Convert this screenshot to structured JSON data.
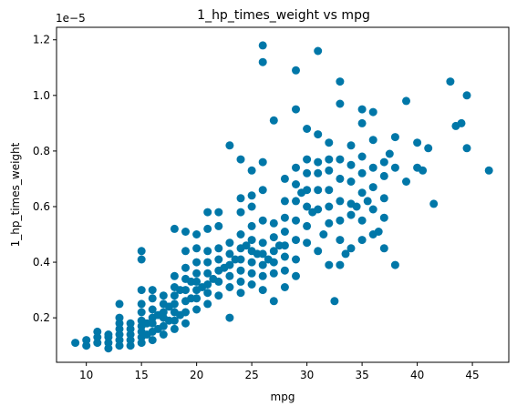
{
  "chart_data": {
    "type": "scatter",
    "title": "1_hp_times_weight vs mpg",
    "xlabel": "mpg",
    "ylabel": "1_hp_times_weight",
    "y_offset_text": "1e−5",
    "xlim": [
      7.3,
      48.3
    ],
    "ylim": [
      0.04,
      1.245
    ],
    "y_scale_note": "values in units of 1e-5",
    "xticks": [
      10,
      15,
      20,
      25,
      30,
      35,
      40,
      45
    ],
    "xtick_labels": [
      "10",
      "15",
      "20",
      "25",
      "30",
      "35",
      "40",
      "45"
    ],
    "yticks": [
      0.2,
      0.4,
      0.6,
      0.8,
      1.0,
      1.2
    ],
    "ytick_labels": [
      "0.2",
      "0.4",
      "0.6",
      "0.8",
      "1.0",
      "1.2"
    ],
    "grid": false,
    "marker_color": "#0077a8",
    "points": [
      [
        9.0,
        0.11
      ],
      [
        10.0,
        0.1
      ],
      [
        10.0,
        0.12
      ],
      [
        11.0,
        0.11
      ],
      [
        11.0,
        0.13
      ],
      [
        11.0,
        0.15
      ],
      [
        12.0,
        0.09
      ],
      [
        12.0,
        0.11
      ],
      [
        12.0,
        0.13
      ],
      [
        12.0,
        0.14
      ],
      [
        13.0,
        0.1
      ],
      [
        13.0,
        0.12
      ],
      [
        13.0,
        0.14
      ],
      [
        13.0,
        0.16
      ],
      [
        13.0,
        0.18
      ],
      [
        13.0,
        0.2
      ],
      [
        13.0,
        0.25
      ],
      [
        14.0,
        0.1
      ],
      [
        14.0,
        0.12
      ],
      [
        14.0,
        0.14
      ],
      [
        14.0,
        0.16
      ],
      [
        14.0,
        0.18
      ],
      [
        15.0,
        0.11
      ],
      [
        15.0,
        0.13
      ],
      [
        15.0,
        0.15
      ],
      [
        15.0,
        0.17
      ],
      [
        15.0,
        0.19
      ],
      [
        15.0,
        0.22
      ],
      [
        15.0,
        0.25
      ],
      [
        15.0,
        0.3
      ],
      [
        15.0,
        0.41
      ],
      [
        15.0,
        0.44
      ],
      [
        15.5,
        0.14
      ],
      [
        15.5,
        0.18
      ],
      [
        16.0,
        0.12
      ],
      [
        16.0,
        0.15
      ],
      [
        16.0,
        0.18
      ],
      [
        16.0,
        0.2
      ],
      [
        16.0,
        0.23
      ],
      [
        16.0,
        0.27
      ],
      [
        16.0,
        0.3
      ],
      [
        16.5,
        0.16
      ],
      [
        16.5,
        0.21
      ],
      [
        17.0,
        0.14
      ],
      [
        17.0,
        0.17
      ],
      [
        17.0,
        0.2
      ],
      [
        17.0,
        0.22
      ],
      [
        17.0,
        0.25
      ],
      [
        17.0,
        0.28
      ],
      [
        17.5,
        0.19
      ],
      [
        17.5,
        0.24
      ],
      [
        18.0,
        0.16
      ],
      [
        18.0,
        0.19
      ],
      [
        18.0,
        0.22
      ],
      [
        18.0,
        0.25
      ],
      [
        18.0,
        0.28
      ],
      [
        18.0,
        0.31
      ],
      [
        18.0,
        0.35
      ],
      [
        18.0,
        0.52
      ],
      [
        18.5,
        0.21
      ],
      [
        18.5,
        0.3
      ],
      [
        19.0,
        0.18
      ],
      [
        19.0,
        0.22
      ],
      [
        19.0,
        0.26
      ],
      [
        19.0,
        0.3
      ],
      [
        19.0,
        0.34
      ],
      [
        19.0,
        0.38
      ],
      [
        19.0,
        0.44
      ],
      [
        19.0,
        0.51
      ],
      [
        19.5,
        0.27
      ],
      [
        19.5,
        0.33
      ],
      [
        20.0,
        0.23
      ],
      [
        20.0,
        0.27
      ],
      [
        20.0,
        0.3
      ],
      [
        20.0,
        0.33
      ],
      [
        20.0,
        0.36
      ],
      [
        20.0,
        0.4
      ],
      [
        20.0,
        0.45
      ],
      [
        20.0,
        0.5
      ],
      [
        20.5,
        0.31
      ],
      [
        21.0,
        0.25
      ],
      [
        21.0,
        0.29
      ],
      [
        21.0,
        0.32
      ],
      [
        21.0,
        0.36
      ],
      [
        21.0,
        0.4
      ],
      [
        21.0,
        0.44
      ],
      [
        21.0,
        0.52
      ],
      [
        21.0,
        0.58
      ],
      [
        21.5,
        0.34
      ],
      [
        22.0,
        0.28
      ],
      [
        22.0,
        0.33
      ],
      [
        22.0,
        0.37
      ],
      [
        22.0,
        0.41
      ],
      [
        22.0,
        0.45
      ],
      [
        22.0,
        0.53
      ],
      [
        22.0,
        0.58
      ],
      [
        22.5,
        0.38
      ],
      [
        23.0,
        0.2
      ],
      [
        23.0,
        0.31
      ],
      [
        23.0,
        0.35
      ],
      [
        23.0,
        0.39
      ],
      [
        23.0,
        0.43
      ],
      [
        23.0,
        0.47
      ],
      [
        23.0,
        0.82
      ],
      [
        23.5,
        0.41
      ],
      [
        24.0,
        0.29
      ],
      [
        24.0,
        0.33
      ],
      [
        24.0,
        0.37
      ],
      [
        24.0,
        0.41
      ],
      [
        24.0,
        0.45
      ],
      [
        24.0,
        0.5
      ],
      [
        24.0,
        0.58
      ],
      [
        24.0,
        0.63
      ],
      [
        24.0,
        0.77
      ],
      [
        24.5,
        0.46
      ],
      [
        25.0,
        0.32
      ],
      [
        25.0,
        0.36
      ],
      [
        25.0,
        0.4
      ],
      [
        25.0,
        0.44
      ],
      [
        25.0,
        0.48
      ],
      [
        25.0,
        0.53
      ],
      [
        25.0,
        0.6
      ],
      [
        25.0,
        0.64
      ],
      [
        25.0,
        0.73
      ],
      [
        25.5,
        0.43
      ],
      [
        26.0,
        0.3
      ],
      [
        26.0,
        0.35
      ],
      [
        26.0,
        0.39
      ],
      [
        26.0,
        0.43
      ],
      [
        26.0,
        0.47
      ],
      [
        26.0,
        0.55
      ],
      [
        26.0,
        0.66
      ],
      [
        26.0,
        0.76
      ],
      [
        26.0,
        1.12
      ],
      [
        26.0,
        1.18
      ],
      [
        26.5,
        0.41
      ],
      [
        27.0,
        0.26
      ],
      [
        27.0,
        0.36
      ],
      [
        27.0,
        0.4
      ],
      [
        27.0,
        0.44
      ],
      [
        27.0,
        0.49
      ],
      [
        27.0,
        0.54
      ],
      [
        27.0,
        0.91
      ],
      [
        27.5,
        0.46
      ],
      [
        28.0,
        0.31
      ],
      [
        28.0,
        0.37
      ],
      [
        28.0,
        0.42
      ],
      [
        28.0,
        0.46
      ],
      [
        28.0,
        0.51
      ],
      [
        28.0,
        0.56
      ],
      [
        28.0,
        0.62
      ],
      [
        28.0,
        0.7
      ],
      [
        29.0,
        0.35
      ],
      [
        29.0,
        0.41
      ],
      [
        29.0,
        0.48
      ],
      [
        29.0,
        0.55
      ],
      [
        29.0,
        0.62
      ],
      [
        29.0,
        0.68
      ],
      [
        29.0,
        0.74
      ],
      [
        29.0,
        0.95
      ],
      [
        29.0,
        1.09
      ],
      [
        29.5,
        0.65
      ],
      [
        30.0,
        0.47
      ],
      [
        30.0,
        0.53
      ],
      [
        30.0,
        0.6
      ],
      [
        30.0,
        0.66
      ],
      [
        30.0,
        0.72
      ],
      [
        30.0,
        0.77
      ],
      [
        30.0,
        0.88
      ],
      [
        30.5,
        0.58
      ],
      [
        31.0,
        0.44
      ],
      [
        31.0,
        0.59
      ],
      [
        31.0,
        0.66
      ],
      [
        31.0,
        0.72
      ],
      [
        31.0,
        0.76
      ],
      [
        31.0,
        0.86
      ],
      [
        31.0,
        1.16
      ],
      [
        31.5,
        0.5
      ],
      [
        32.0,
        0.39
      ],
      [
        32.0,
        0.54
      ],
      [
        32.0,
        0.6
      ],
      [
        32.0,
        0.66
      ],
      [
        32.0,
        0.73
      ],
      [
        32.0,
        0.77
      ],
      [
        32.0,
        0.83
      ],
      [
        32.5,
        0.26
      ],
      [
        33.0,
        0.39
      ],
      [
        33.0,
        0.48
      ],
      [
        33.0,
        0.55
      ],
      [
        33.0,
        0.62
      ],
      [
        33.0,
        0.7
      ],
      [
        33.0,
        0.77
      ],
      [
        33.0,
        0.97
      ],
      [
        33.0,
        1.05
      ],
      [
        33.5,
        0.43
      ],
      [
        34.0,
        0.45
      ],
      [
        34.0,
        0.57
      ],
      [
        34.0,
        0.61
      ],
      [
        34.0,
        0.69
      ],
      [
        34.0,
        0.75
      ],
      [
        34.0,
        0.82
      ],
      [
        34.5,
        0.6
      ],
      [
        35.0,
        0.48
      ],
      [
        35.0,
        0.55
      ],
      [
        35.0,
        0.65
      ],
      [
        35.0,
        0.72
      ],
      [
        35.0,
        0.78
      ],
      [
        35.0,
        0.9
      ],
      [
        35.0,
        0.95
      ],
      [
        35.5,
        0.62
      ],
      [
        36.0,
        0.5
      ],
      [
        36.0,
        0.59
      ],
      [
        36.0,
        0.67
      ],
      [
        36.0,
        0.74
      ],
      [
        36.0,
        0.84
      ],
      [
        36.0,
        0.94
      ],
      [
        36.5,
        0.51
      ],
      [
        37.0,
        0.45
      ],
      [
        37.0,
        0.56
      ],
      [
        37.0,
        0.63
      ],
      [
        37.0,
        0.71
      ],
      [
        37.0,
        0.76
      ],
      [
        37.5,
        0.79
      ],
      [
        38.0,
        0.39
      ],
      [
        38.0,
        0.74
      ],
      [
        38.0,
        0.85
      ],
      [
        39.0,
        0.69
      ],
      [
        39.0,
        0.98
      ],
      [
        40.0,
        0.74
      ],
      [
        40.0,
        0.83
      ],
      [
        40.5,
        0.73
      ],
      [
        41.0,
        0.81
      ],
      [
        41.5,
        0.61
      ],
      [
        43.0,
        1.05
      ],
      [
        43.5,
        0.89
      ],
      [
        44.0,
        0.9
      ],
      [
        44.5,
        1.0
      ],
      [
        44.5,
        0.81
      ],
      [
        46.5,
        0.73
      ]
    ]
  }
}
